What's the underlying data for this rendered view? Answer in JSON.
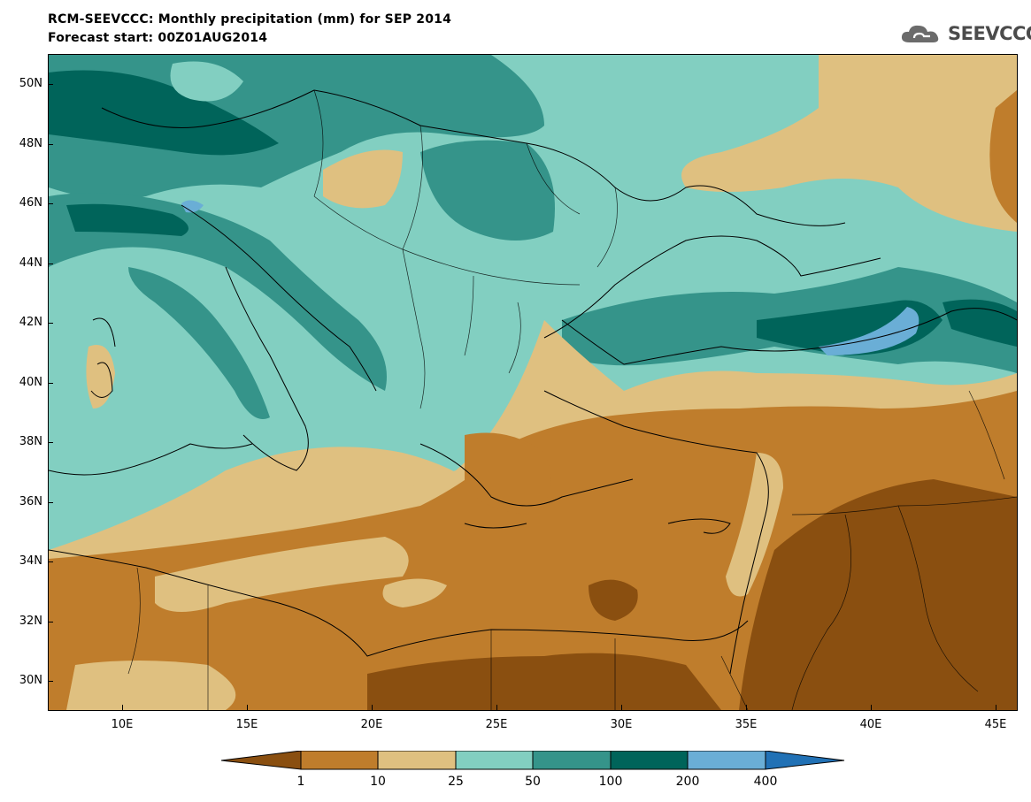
{
  "title": "RCM-SEEVCCC: Monthly precipitation (mm) for SEP 2014",
  "subtitle": "Forecast start: 00Z01AUG2014",
  "logo_text": "SEEVCCC",
  "lat_labels": [
    "50N",
    "48N",
    "46N",
    "44N",
    "42N",
    "40N",
    "38N",
    "36N",
    "34N",
    "32N",
    "30N"
  ],
  "lon_labels": [
    "10E",
    "15E",
    "20E",
    "25E",
    "30E",
    "35E",
    "40E",
    "45E"
  ],
  "legend": {
    "labels": [
      "1",
      "10",
      "25",
      "50",
      "100",
      "200",
      "400"
    ],
    "colors": [
      "#8a4f10",
      "#bf7d2c",
      "#dfc080",
      "#82cfc1",
      "#35948a",
      "#00645a",
      "#6aaed6",
      "#2171b5"
    ]
  },
  "palette": {
    "very_dry": "#8a4f10",
    "dry": "#bf7d2c",
    "low": "#dfc080",
    "moderate": "#82cfc1",
    "high": "#35948a",
    "very_high": "#00645a",
    "extreme": "#6aaed6"
  }
}
